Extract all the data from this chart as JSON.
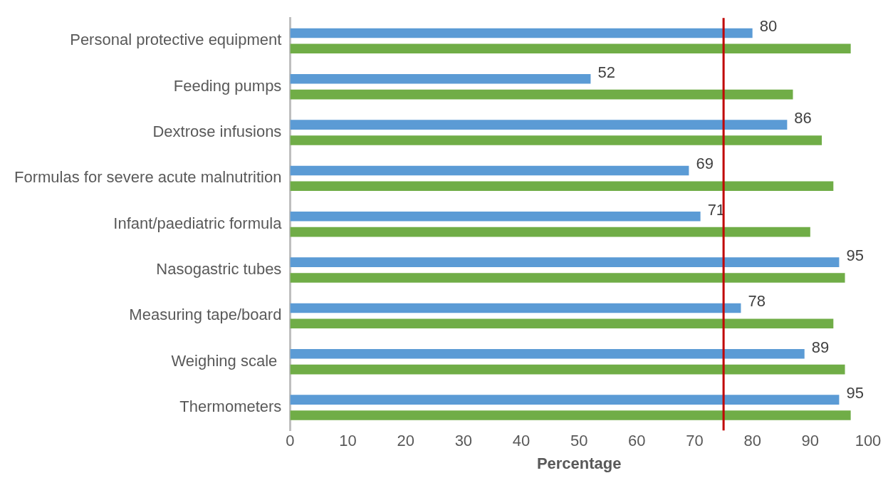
{
  "chart_data": {
    "type": "bar",
    "orientation": "horizontal",
    "xlabel": "Percentage",
    "categories": [
      "Personal protective equipment",
      "Feeding pumps",
      "Dextrose infusions",
      "Formulas for severe acute malnutrition",
      "Infant/paediatric formula",
      "Nasogastric tubes",
      "Measuring tape/board",
      "Weighing scale ",
      "Thermometers"
    ],
    "series": [
      {
        "color": "#5b9bd5",
        "values": [
          80,
          52,
          86,
          69,
          71,
          95,
          78,
          89,
          95
        ],
        "value_labels": [
          "80",
          "52",
          "86",
          "69",
          "71",
          "95",
          "78",
          "89",
          "95"
        ]
      },
      {
        "color": "#70ad47",
        "values": [
          97,
          87,
          92,
          94,
          90,
          96,
          94,
          96,
          97
        ]
      }
    ],
    "xlim": [
      0,
      100
    ],
    "xticks": [
      0,
      10,
      20,
      30,
      40,
      50,
      60,
      70,
      80,
      90,
      100
    ],
    "ref_lines": [
      {
        "axis": "x",
        "value": 75,
        "color": "#c00000"
      }
    ],
    "grid": false,
    "legend": false
  }
}
